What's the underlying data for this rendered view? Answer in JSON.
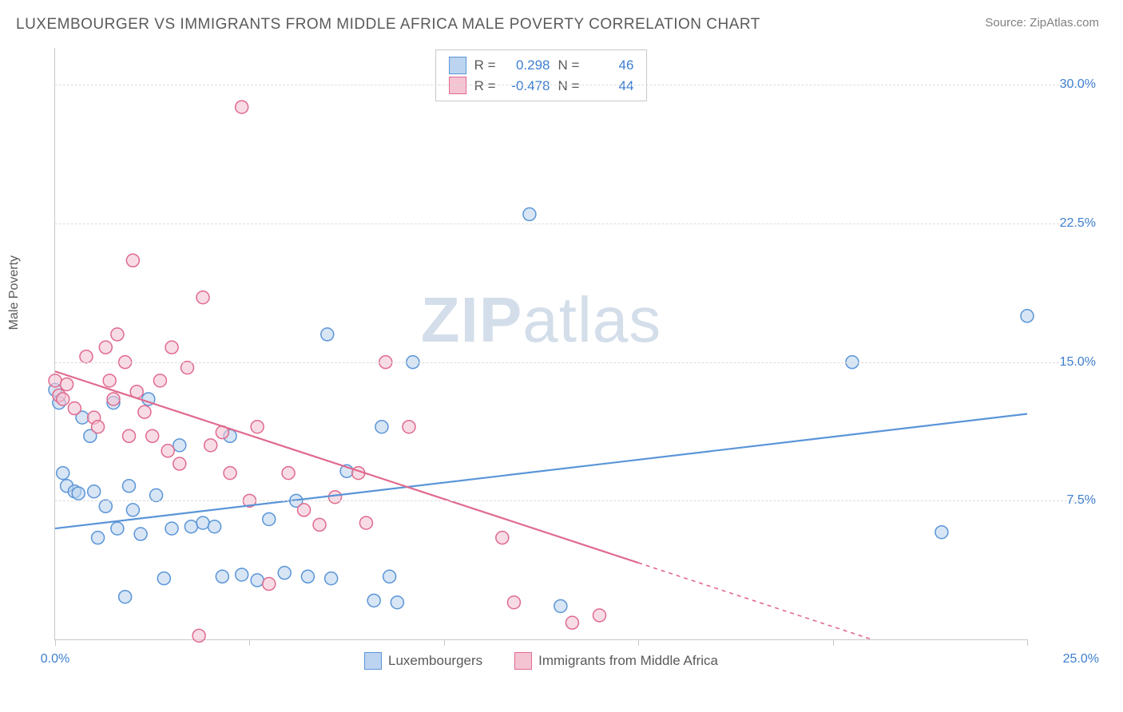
{
  "header": {
    "title": "LUXEMBOURGER VS IMMIGRANTS FROM MIDDLE AFRICA MALE POVERTY CORRELATION CHART",
    "source_prefix": "Source: ",
    "source_name": "ZipAtlas.com"
  },
  "watermark": {
    "part1": "ZIP",
    "part2": "atlas"
  },
  "ylabel": "Male Poverty",
  "chart": {
    "type": "scatter",
    "background_color": "#ffffff",
    "grid_color": "#dcdcdc",
    "axis_color": "#c8c8c8",
    "text_color": "#5a5a5a",
    "value_color": "#3e7fd0",
    "xlim": [
      0,
      25
    ],
    "ylim": [
      0,
      32
    ],
    "xtick_positions": [
      0,
      5,
      10,
      15,
      20,
      25
    ],
    "xtick_labels_shown": {
      "0": "0.0%",
      "25": "25.0%"
    },
    "ytick_positions": [
      7.5,
      15,
      22.5,
      30
    ],
    "ytick_labels": [
      "7.5%",
      "15.0%",
      "22.5%",
      "30.0%"
    ],
    "marker_radius": 8,
    "marker_stroke_width": 1.5,
    "fill_opacity": 0.25,
    "trend_line_width": 2.2,
    "series": [
      {
        "name": "Luxembourgers",
        "color": "#5a95d8",
        "fill": "#bcd4ef",
        "r_value": "0.298",
        "n_value": "46",
        "trend": {
          "x1": 0,
          "y1": 6.0,
          "x2": 25,
          "y2": 12.2,
          "solid_until": 25
        },
        "points": [
          [
            0.0,
            13.5
          ],
          [
            0.1,
            12.8
          ],
          [
            0.2,
            9.0
          ],
          [
            0.3,
            8.3
          ],
          [
            0.5,
            8.0
          ],
          [
            0.6,
            7.9
          ],
          [
            0.7,
            12.0
          ],
          [
            0.9,
            11.0
          ],
          [
            1.0,
            8.0
          ],
          [
            1.1,
            5.5
          ],
          [
            1.3,
            7.2
          ],
          [
            1.5,
            12.8
          ],
          [
            1.6,
            6.0
          ],
          [
            1.8,
            2.3
          ],
          [
            1.9,
            8.3
          ],
          [
            2.0,
            7.0
          ],
          [
            2.2,
            5.7
          ],
          [
            2.4,
            13.0
          ],
          [
            2.6,
            7.8
          ],
          [
            2.8,
            3.3
          ],
          [
            3.0,
            6.0
          ],
          [
            3.2,
            10.5
          ],
          [
            3.5,
            6.1
          ],
          [
            3.8,
            6.3
          ],
          [
            4.1,
            6.1
          ],
          [
            4.3,
            3.4
          ],
          [
            4.5,
            11.0
          ],
          [
            4.8,
            3.5
          ],
          [
            5.2,
            3.2
          ],
          [
            5.5,
            6.5
          ],
          [
            5.9,
            3.6
          ],
          [
            6.2,
            7.5
          ],
          [
            6.5,
            3.4
          ],
          [
            7.0,
            16.5
          ],
          [
            7.1,
            3.3
          ],
          [
            7.5,
            9.1
          ],
          [
            8.2,
            2.1
          ],
          [
            8.4,
            11.5
          ],
          [
            8.6,
            3.4
          ],
          [
            8.8,
            2.0
          ],
          [
            9.2,
            15.0
          ],
          [
            12.2,
            23.0
          ],
          [
            13.0,
            1.8
          ],
          [
            20.5,
            15.0
          ],
          [
            22.8,
            5.8
          ],
          [
            25.0,
            17.5
          ]
        ]
      },
      {
        "name": "Immigrants from Middle Africa",
        "color": "#e06a8e",
        "fill": "#f4c4d3",
        "r_value": "-0.478",
        "n_value": "44",
        "trend": {
          "x1": 0,
          "y1": 14.5,
          "x2": 21,
          "y2": 0,
          "solid_until": 15
        },
        "points": [
          [
            0.0,
            14.0
          ],
          [
            0.1,
            13.2
          ],
          [
            0.2,
            13.0
          ],
          [
            0.3,
            13.8
          ],
          [
            0.5,
            12.5
          ],
          [
            0.8,
            15.3
          ],
          [
            1.0,
            12.0
          ],
          [
            1.1,
            11.5
          ],
          [
            1.3,
            15.8
          ],
          [
            1.4,
            14.0
          ],
          [
            1.5,
            13.0
          ],
          [
            1.6,
            16.5
          ],
          [
            1.8,
            15.0
          ],
          [
            1.9,
            11.0
          ],
          [
            2.0,
            20.5
          ],
          [
            2.1,
            13.4
          ],
          [
            2.3,
            12.3
          ],
          [
            2.5,
            11.0
          ],
          [
            2.7,
            14.0
          ],
          [
            2.9,
            10.2
          ],
          [
            3.0,
            15.8
          ],
          [
            3.2,
            9.5
          ],
          [
            3.4,
            14.7
          ],
          [
            3.7,
            0.2
          ],
          [
            3.8,
            18.5
          ],
          [
            4.0,
            10.5
          ],
          [
            4.3,
            11.2
          ],
          [
            4.5,
            9.0
          ],
          [
            4.8,
            28.8
          ],
          [
            5.0,
            7.5
          ],
          [
            5.2,
            11.5
          ],
          [
            5.5,
            3.0
          ],
          [
            6.0,
            9.0
          ],
          [
            6.4,
            7.0
          ],
          [
            6.8,
            6.2
          ],
          [
            7.2,
            7.7
          ],
          [
            7.8,
            9.0
          ],
          [
            8.0,
            6.3
          ],
          [
            8.5,
            15.0
          ],
          [
            9.1,
            11.5
          ],
          [
            11.5,
            5.5
          ],
          [
            11.8,
            2.0
          ],
          [
            13.3,
            0.9
          ],
          [
            14.0,
            1.3
          ]
        ]
      }
    ]
  },
  "stat_legend": {
    "r_label": "R =",
    "n_label": "N ="
  },
  "bottom_legend": {
    "items": [
      "Luxembourgers",
      "Immigrants from Middle Africa"
    ]
  }
}
